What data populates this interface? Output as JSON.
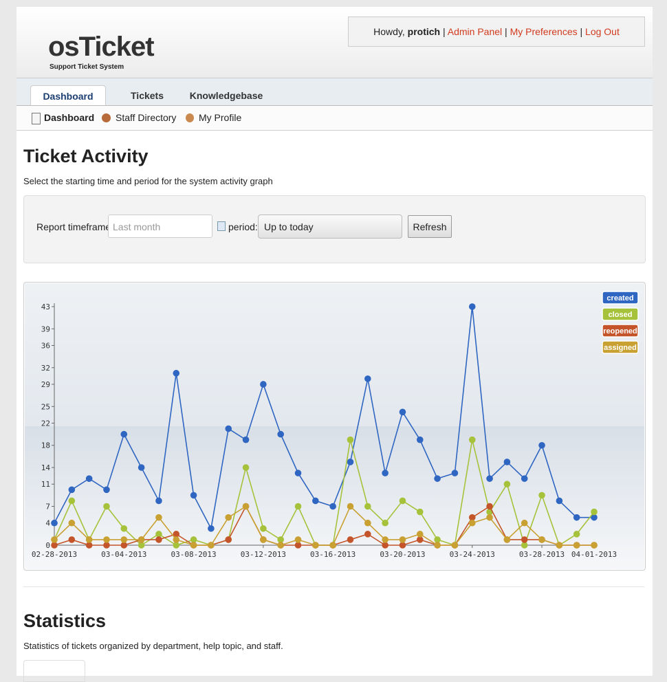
{
  "header": {
    "logo": "osTicket",
    "tagline": "Support Ticket System",
    "greeting": "Howdy,",
    "user": "protich",
    "separator": "|",
    "links": [
      "Admin Panel",
      "My Preferences",
      "Log Out"
    ]
  },
  "tabs": [
    "Dashboard",
    "Tickets",
    "Knowledgebase"
  ],
  "subnav": [
    "Dashboard",
    "Staff Directory",
    "My Profile"
  ],
  "activity": {
    "title": "Ticket Activity",
    "description": "Select the starting time and period for the system activity graph",
    "form": {
      "timeframe_label": "Report timeframe:",
      "timeframe_placeholder": "Last month",
      "period_label": "period:",
      "period_value": "Up to today",
      "button": "Refresh"
    }
  },
  "chart_data": {
    "type": "line",
    "categories": [
      "02-28-2013",
      null,
      null,
      null,
      "03-04-2013",
      null,
      null,
      null,
      "03-08-2013",
      null,
      null,
      null,
      "03-12-2013",
      null,
      null,
      null,
      "03-16-2013",
      null,
      null,
      null,
      "03-20-2013",
      null,
      null,
      null,
      "03-24-2013",
      null,
      null,
      null,
      "03-28-2013",
      null,
      null,
      "04-01-2013"
    ],
    "series": [
      {
        "name": "created",
        "color": "#2f66c2",
        "values": [
          4,
          10,
          12,
          10,
          20,
          14,
          8,
          31,
          9,
          3,
          21,
          19,
          29,
          20,
          13,
          8,
          7,
          15,
          30,
          13,
          24,
          19,
          12,
          13,
          43,
          12,
          15,
          12,
          18,
          8,
          5,
          5
        ]
      },
      {
        "name": "closed",
        "color": "#a6c23a",
        "values": [
          1,
          8,
          1,
          7,
          3,
          0,
          2,
          0,
          1,
          0,
          1,
          14,
          3,
          1,
          7,
          0,
          0,
          19,
          7,
          4,
          8,
          6,
          1,
          0,
          19,
          6,
          11,
          0,
          9,
          0,
          2,
          6
        ]
      },
      {
        "name": "reopened",
        "color": "#c4552a",
        "values": [
          0,
          1,
          0,
          0,
          0,
          1,
          1,
          2,
          0,
          0,
          1,
          7,
          1,
          0,
          0,
          0,
          0,
          1,
          2,
          0,
          0,
          1,
          0,
          0,
          5,
          7,
          1,
          1,
          1,
          0,
          0,
          0
        ]
      },
      {
        "name": "assigned",
        "color": "#c9a032",
        "values": [
          1,
          4,
          1,
          1,
          1,
          1,
          5,
          1,
          0,
          0,
          5,
          7,
          1,
          0,
          1,
          0,
          0,
          7,
          4,
          1,
          1,
          2,
          0,
          0,
          4,
          5,
          1,
          4,
          1,
          0,
          0,
          0
        ]
      }
    ],
    "ylim": [
      0,
      43
    ],
    "yticks": [
      0,
      4,
      7,
      11,
      14,
      18,
      22,
      25,
      29,
      32,
      36,
      39,
      43
    ],
    "legend": "top-right"
  },
  "statistics": {
    "title": "Statistics",
    "description": "Statistics of tickets organized by department, help topic, and staff."
  }
}
